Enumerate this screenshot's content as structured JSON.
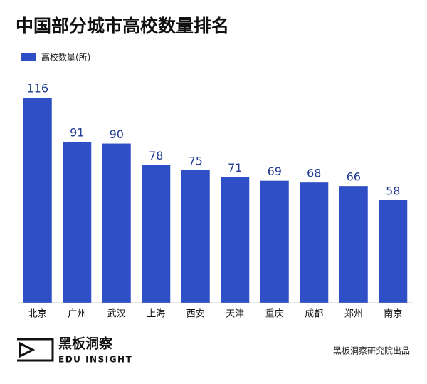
{
  "chart_data": {
    "type": "bar",
    "title": "中国部分城市高校数量排名",
    "categories": [
      "北京",
      "广州",
      "武汉",
      "上海",
      "西安",
      "天津",
      "重庆",
      "成都",
      "郑州",
      "南京"
    ],
    "series": [
      {
        "name": "高校数量(所)",
        "color": "#2f4fc6",
        "values": [
          116,
          91,
          90,
          78,
          75,
          71,
          69,
          68,
          66,
          58
        ]
      }
    ]
  },
  "footer": {
    "brand": "黑板洞察",
    "brand_en": "EDU INSIGHT",
    "credit": "黑板洞察研究院出品"
  }
}
